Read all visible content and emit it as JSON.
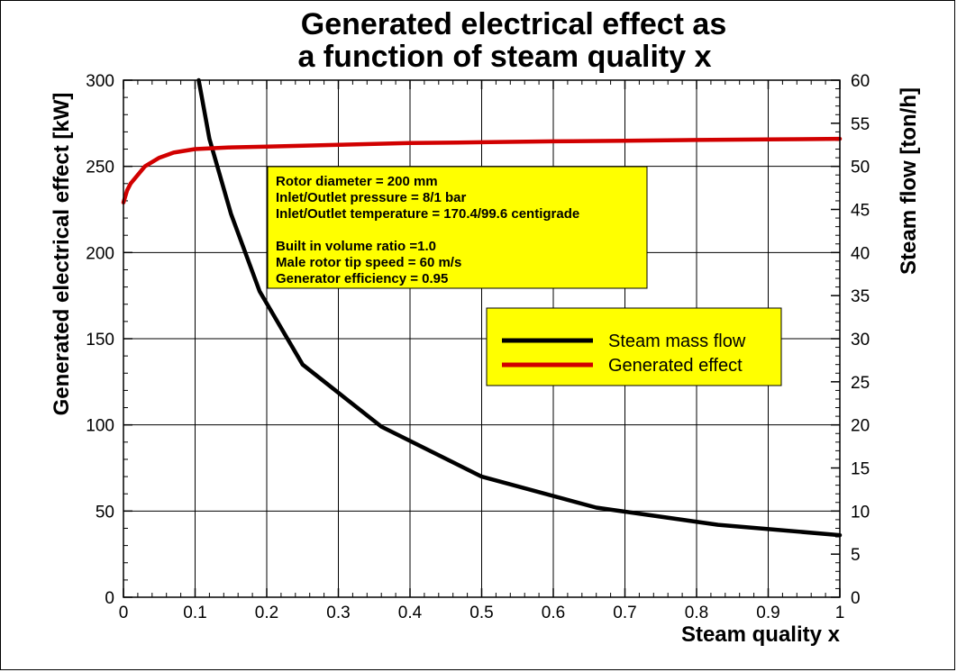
{
  "chart_data": {
    "type": "line",
    "title": [
      "Generated electrical effect as",
      "a function of steam quality x"
    ],
    "xlabel": "Steam quality x",
    "ylabel_left": "Generated electrical effect [kW]",
    "ylabel_right": "Steam flow [ton/h]",
    "xlim": [
      0,
      1
    ],
    "ylim_left": [
      0,
      300
    ],
    "ylim_right": [
      0,
      60
    ],
    "x_ticks": [
      "0",
      "0.1",
      "0.2",
      "0.3",
      "0.4",
      "0.5",
      "0.6",
      "0.7",
      "0.8",
      "0.9",
      "1"
    ],
    "y_left_ticks": [
      "0",
      "50",
      "100",
      "150",
      "200",
      "250",
      "300"
    ],
    "y_right_ticks": [
      "0",
      "5",
      "10",
      "15",
      "20",
      "25",
      "30",
      "35",
      "40",
      "45",
      "50",
      "55",
      "60"
    ],
    "grid": true,
    "series": [
      {
        "name": "Steam mass flow",
        "axis": "right",
        "color": "#000000",
        "x": [
          0.105,
          0.12,
          0.15,
          0.19,
          0.25,
          0.36,
          0.5,
          0.66,
          0.83,
          1.0
        ],
        "y": [
          60.0,
          53.2,
          44.5,
          35.5,
          27.0,
          19.8,
          14.0,
          10.4,
          8.4,
          7.2
        ]
      },
      {
        "name": "Generated effect",
        "axis": "left",
        "color": "#d10000",
        "x": [
          0.0,
          0.005,
          0.01,
          0.02,
          0.03,
          0.05,
          0.07,
          0.1,
          0.15,
          0.2,
          0.3,
          0.4,
          0.5,
          0.6,
          0.7,
          0.8,
          0.9,
          1.0
        ],
        "y": [
          229,
          236,
          240,
          245,
          250,
          255,
          258,
          260,
          261,
          261.5,
          262.5,
          263.5,
          264,
          264.5,
          264.8,
          265.3,
          265.6,
          266
        ]
      }
    ],
    "legend": {
      "placement": "center-right",
      "background": "#ffff00",
      "entries": [
        "Steam mass flow",
        "Generated effect"
      ]
    },
    "annotation": {
      "background": "#ffff00",
      "lines": [
        "Rotor diameter = 200 mm",
        "Inlet/Outlet pressure = 8/1 bar",
        "Inlet/Outlet temperature = 170.4/99.6 centigrade",
        "",
        "Built in volume ratio =1.0",
        "Male rotor tip speed = 60 m/s",
        "Generator efficiency = 0.95"
      ]
    }
  }
}
